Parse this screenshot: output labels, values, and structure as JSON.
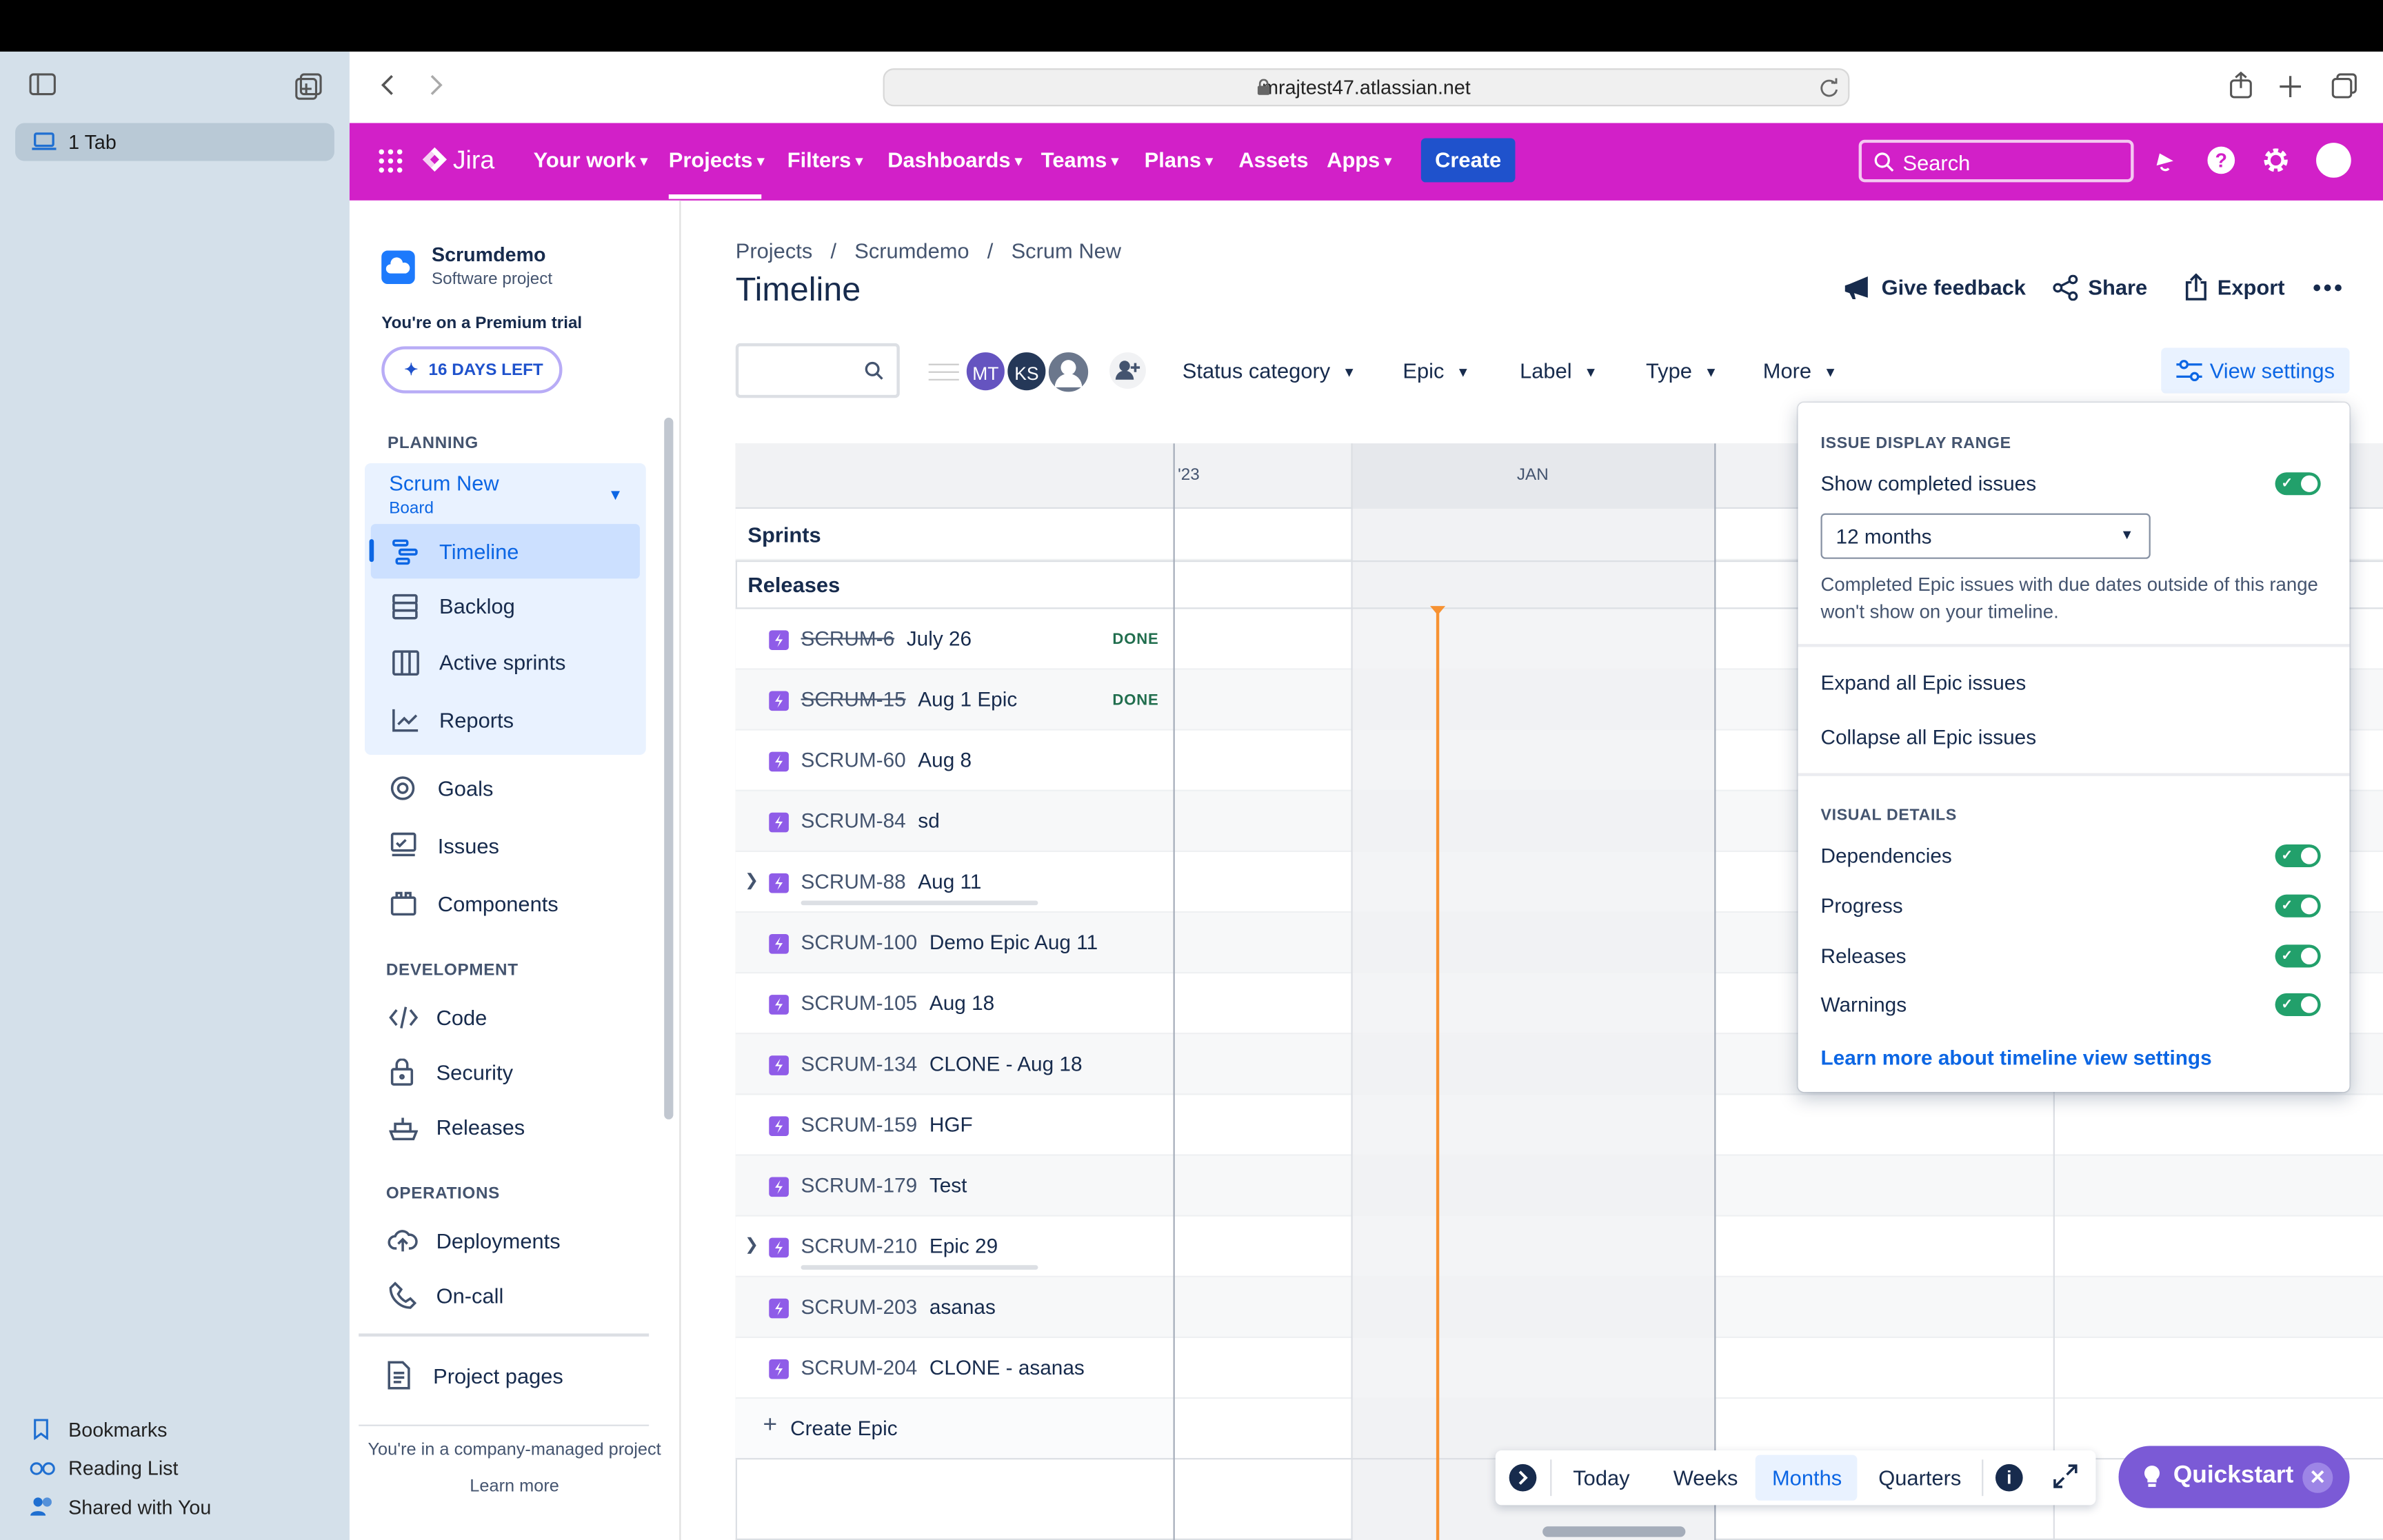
{
  "browser": {
    "tab_count_label": "1 Tab",
    "url": "mrajtest47.atlassian.net",
    "sidebar_links": [
      "Bookmarks",
      "Reading List",
      "Shared with You"
    ]
  },
  "nav": {
    "brand": "Jira",
    "items": [
      "Your work",
      "Projects",
      "Filters",
      "Dashboards",
      "Teams",
      "Plans",
      "Assets",
      "Apps"
    ],
    "create_label": "Create",
    "search_placeholder": "Search",
    "color": "#d220c8"
  },
  "project": {
    "name": "Scrumdemo",
    "type": "Software project",
    "trial_text": "You're on a Premium trial",
    "days_left": "16 DAYS LEFT",
    "planning_heading": "PLANNING",
    "board_name": "Scrum New",
    "board_type": "Board",
    "planning_items": [
      "Timeline",
      "Backlog",
      "Active sprints",
      "Reports"
    ],
    "other_items": [
      "Goals",
      "Issues",
      "Components"
    ],
    "development_heading": "DEVELOPMENT",
    "development_items": [
      "Code",
      "Security",
      "Releases"
    ],
    "operations_heading": "OPERATIONS",
    "operations_items": [
      "Deployments",
      "On-call"
    ],
    "project_pages": "Project pages",
    "company_managed": "You're in a company-managed project",
    "learn_more": "Learn more"
  },
  "page": {
    "breadcrumb": [
      "Projects",
      "Scrumdemo",
      "Scrum New"
    ],
    "title": "Timeline",
    "give_feedback": "Give feedback",
    "share": "Share",
    "export": "Export",
    "avatars": [
      "MT",
      "KS"
    ],
    "filters": [
      "Status category",
      "Epic",
      "Label",
      "Type",
      "More"
    ],
    "view_settings": "View settings"
  },
  "timeline": {
    "header_labels": [
      "'23",
      "JAN"
    ],
    "sprints_label": "Sprints",
    "releases_label": "Releases",
    "rows": [
      {
        "key": "SCRUM-6",
        "name": "July 26",
        "status": "DONE"
      },
      {
        "key": "SCRUM-15",
        "name": "Aug 1 Epic",
        "status": "DONE"
      },
      {
        "key": "SCRUM-60",
        "name": "Aug 8",
        "status": ""
      },
      {
        "key": "SCRUM-84",
        "name": "sd",
        "status": ""
      },
      {
        "key": "SCRUM-88",
        "name": "Aug 11",
        "status": ""
      },
      {
        "key": "SCRUM-100",
        "name": "Demo Epic Aug 11",
        "status": ""
      },
      {
        "key": "SCRUM-105",
        "name": "Aug 18",
        "status": ""
      },
      {
        "key": "SCRUM-134",
        "name": "CLONE - Aug 18",
        "status": ""
      },
      {
        "key": "SCRUM-159",
        "name": "HGF",
        "status": ""
      },
      {
        "key": "SCRUM-179",
        "name": "Test",
        "status": ""
      },
      {
        "key": "SCRUM-210",
        "name": "Epic 29",
        "status": ""
      },
      {
        "key": "SCRUM-203",
        "name": "asanas",
        "status": ""
      },
      {
        "key": "SCRUM-204",
        "name": "CLONE - asanas",
        "status": ""
      }
    ],
    "create_epic": "Create Epic"
  },
  "view_settings_panel": {
    "range_heading": "ISSUE DISPLAY RANGE",
    "show_completed": "Show completed issues",
    "range_value": "12 months",
    "range_note": "Completed Epic issues with due dates outside of this range won't show on your timeline.",
    "expand_all": "Expand all Epic issues",
    "collapse_all": "Collapse all Epic issues",
    "visual_heading": "VISUAL DETAILS",
    "toggles": [
      "Dependencies",
      "Progress",
      "Releases",
      "Warnings"
    ],
    "learn_more": "Learn more about timeline view settings"
  },
  "zoom_bar": {
    "options": [
      "Today",
      "Weeks",
      "Months",
      "Quarters"
    ],
    "selected": "Months"
  },
  "quickstart": "Quickstart"
}
